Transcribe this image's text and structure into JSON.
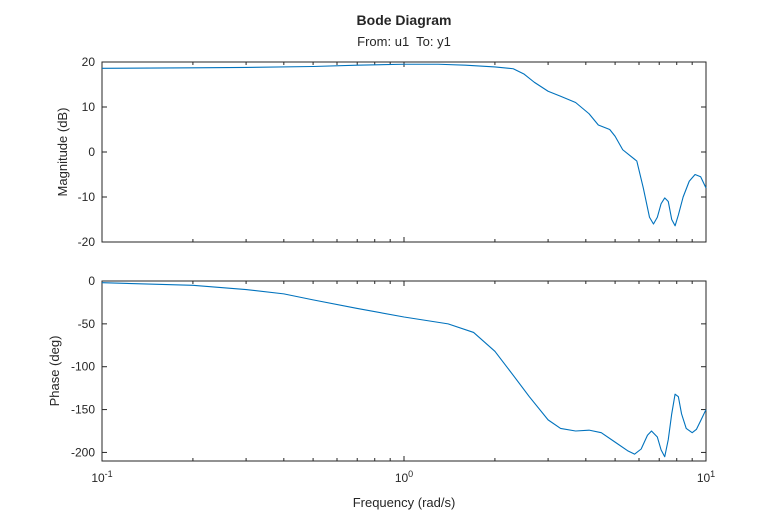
{
  "chart_data": {
    "type": "line",
    "title": "Bode Diagram",
    "subtitle": "From: u1  To: y1",
    "xlabel": "Frequency (rad/s)",
    "xscale": "log",
    "xlim": [
      0.1,
      10
    ],
    "x_ticks": [
      {
        "value": 0.1,
        "base": "10",
        "exp": "-1"
      },
      {
        "value": 1,
        "base": "10",
        "exp": "0"
      },
      {
        "value": 10,
        "base": "10",
        "exp": "1"
      }
    ],
    "grid": false,
    "line_color": "#0072BD",
    "panels": [
      {
        "id": "magnitude",
        "ylabel": "Magnitude (dB)",
        "ylim": [
          -20,
          20
        ],
        "y_ticks": [
          20,
          10,
          0,
          -10,
          -20
        ],
        "series": [
          {
            "x": [
              0.1,
              0.2,
              0.3,
              0.5,
              0.7,
              1.0,
              1.3,
              1.6,
              2.0,
              2.3,
              2.5,
              2.7,
              3.0,
              3.3,
              3.7,
              4.1,
              4.4,
              4.8,
              5.0,
              5.3,
              5.6,
              5.9,
              6.2,
              6.5,
              6.7,
              6.9,
              7.1,
              7.3,
              7.5,
              7.7,
              7.9,
              8.1,
              8.4,
              8.8,
              9.2,
              9.6,
              10.0
            ],
            "y": [
              18.6,
              18.7,
              18.8,
              19.0,
              19.3,
              19.5,
              19.5,
              19.3,
              18.9,
              18.5,
              17.3,
              15.5,
              13.5,
              12.4,
              11.0,
              8.5,
              6.0,
              5.0,
              3.5,
              0.5,
              -0.8,
              -2.0,
              -8.0,
              -14.5,
              -16.0,
              -14.5,
              -11.5,
              -10.2,
              -11.0,
              -15.0,
              -16.4,
              -14.0,
              -10.0,
              -6.5,
              -5.0,
              -5.5,
              -8.0
            ]
          }
        ]
      },
      {
        "id": "phase",
        "ylabel": "Phase (deg)",
        "ylim": [
          -210,
          0
        ],
        "y_ticks": [
          0,
          -50,
          -100,
          -150,
          -200
        ],
        "series": [
          {
            "x": [
              0.1,
              0.2,
              0.3,
              0.4,
              0.5,
              0.7,
              1.0,
              1.4,
              1.7,
              2.0,
              2.3,
              2.6,
              3.0,
              3.3,
              3.7,
              4.1,
              4.5,
              5.0,
              5.5,
              5.8,
              6.1,
              6.4,
              6.6,
              6.9,
              7.1,
              7.3,
              7.5,
              7.7,
              7.9,
              8.1,
              8.3,
              8.6,
              9.0,
              9.3,
              9.6,
              10.0
            ],
            "y": [
              -2,
              -5,
              -10,
              -15,
              -22,
              -32,
              -42,
              -50,
              -60,
              -82,
              -110,
              -135,
              -162,
              -172,
              -175,
              -174,
              -177,
              -188,
              -198,
              -202,
              -196,
              -180,
              -175,
              -182,
              -197,
              -205,
              -185,
              -155,
              -132,
              -135,
              -155,
              -172,
              -177,
              -173,
              -163,
              -150
            ]
          }
        ]
      }
    ]
  }
}
